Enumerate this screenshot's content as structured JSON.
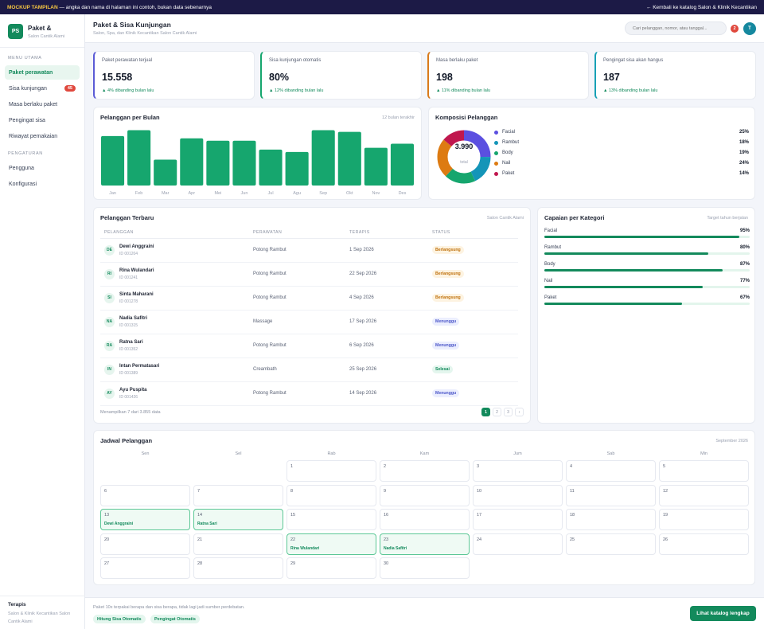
{
  "banner": {
    "mock_label": "MOCKUP TAMPILAN",
    "note": " — angka dan nama di halaman ini contoh, bukan data sebenarnya",
    "back_link": "← Kembali ke katalog Salon & Klinik Kecantikan"
  },
  "brand": {
    "logo": "PS",
    "name": "Paket &",
    "subtitle": "Salon Cantik Alami"
  },
  "sidebar": {
    "section_main": "MENU UTAMA",
    "items": [
      {
        "label": "Paket perawatan",
        "active": true
      },
      {
        "label": "Sisa kunjungan",
        "badge": "45"
      },
      {
        "label": "Masa berlaku paket"
      },
      {
        "label": "Pengingat sisa"
      },
      {
        "label": "Riwayat pemakaian"
      }
    ],
    "section_settings": "PENGATURAN",
    "settings_items": [
      {
        "label": "Pengguna"
      },
      {
        "label": "Konfigurasi"
      }
    ],
    "footer_title": "Terapis",
    "footer_sub": "Salon & Klinik Kecantikan Salon Cantik Alami"
  },
  "header": {
    "title": "Paket & Sisa Kunjungan",
    "subtitle": "Salon, Spa, dan Klinik Kecantikan Salon Cantik Alami",
    "search_placeholder": "Cari pelanggan, nomor, atau tanggal...",
    "notif_count": "2",
    "avatar": "T"
  },
  "kpis": [
    {
      "label": "Paket perawatan terjual",
      "value": "15.558",
      "delta": "▲ 4% dibanding bulan lalu",
      "accent": "#5b5bd6"
    },
    {
      "label": "Sisa kunjungan otomatis",
      "value": "80%",
      "delta": "▲ 12% dibanding bulan lalu",
      "accent": "#16a66e"
    },
    {
      "label": "Masa berlaku paket",
      "value": "198",
      "delta": "▲ 11% dibanding bulan lalu",
      "accent": "#d97a1a"
    },
    {
      "label": "Pengingat sisa akan hangus",
      "value": "187",
      "delta": "▲ 13% dibanding bulan lalu",
      "accent": "#16a0b5"
    }
  ],
  "monthly": {
    "title": "Pelanggan per Bulan",
    "meta": "12 bulan terakhir",
    "chart_data": {
      "type": "bar",
      "categories": [
        "Jan",
        "Feb",
        "Mar",
        "Apr",
        "Mei",
        "Jun",
        "Jul",
        "Agu",
        "Sep",
        "Okt",
        "Nov",
        "Des"
      ],
      "values": [
        84,
        94,
        44,
        80,
        76,
        76,
        61,
        57,
        94,
        91,
        64,
        71
      ],
      "ylim": [
        0,
        100
      ]
    }
  },
  "composition": {
    "title": "Komposisi Pelanggan",
    "total": "3.990",
    "total_label": "total",
    "chart_data": {
      "type": "pie",
      "categories": [
        "Facial",
        "Rambut",
        "Body",
        "Nail",
        "Paket"
      ],
      "values": [
        25,
        18,
        19,
        24,
        14
      ],
      "labels": [
        "25%",
        "18%",
        "19%",
        "24%",
        "14%"
      ],
      "colors": [
        "#5b4fe0",
        "#1495b8",
        "#16a66e",
        "#dd7b12",
        "#c0174e"
      ]
    }
  },
  "recent": {
    "title": "Pelanggan Terbaru",
    "meta": "Salon Cantik Alami",
    "columns": [
      "PELANGGAN",
      "PERAWATAN",
      "TERAPIS",
      "STATUS"
    ],
    "rows": [
      {
        "initials": "DE",
        "name": "Dewi Anggraini",
        "id": "ID 001204",
        "treatment": "Potong Rambut",
        "date": "1 Sep 2026",
        "status": "Berlangsung",
        "kind": "b"
      },
      {
        "initials": "RI",
        "name": "Rina Wulandari",
        "id": "ID 001241",
        "treatment": "Potong Rambut",
        "date": "22 Sep 2026",
        "status": "Berlangsung",
        "kind": "b"
      },
      {
        "initials": "SI",
        "name": "Sinta Maharani",
        "id": "ID 001278",
        "treatment": "Potong Rambut",
        "date": "4 Sep 2026",
        "status": "Berlangsung",
        "kind": "b"
      },
      {
        "initials": "NA",
        "name": "Nadia Safitri",
        "id": "ID 001315",
        "treatment": "Massage",
        "date": "17 Sep 2026",
        "status": "Menunggu",
        "kind": "m"
      },
      {
        "initials": "RA",
        "name": "Ratna Sari",
        "id": "ID 001352",
        "treatment": "Potong Rambut",
        "date": "6 Sep 2026",
        "status": "Menunggu",
        "kind": "m"
      },
      {
        "initials": "IN",
        "name": "Intan Permatasari",
        "id": "ID 001389",
        "treatment": "Creambath",
        "date": "25 Sep 2026",
        "status": "Selesai",
        "kind": "s"
      },
      {
        "initials": "AY",
        "name": "Ayu Puspita",
        "id": "ID 001426",
        "treatment": "Potong Rambut",
        "date": "14 Sep 2026",
        "status": "Menunggu",
        "kind": "m"
      }
    ],
    "pager_info": "Menampilkan 7 dari 3.855 data",
    "pages": [
      "1",
      "2",
      "3",
      "›"
    ]
  },
  "category": {
    "title": "Capaian per Kategori",
    "meta": "Target tahun berjalan",
    "chart_data": {
      "type": "bar",
      "categories": [
        "Facial",
        "Rambut",
        "Body",
        "Nail",
        "Paket"
      ],
      "values": [
        95,
        80,
        87,
        77,
        67
      ],
      "labels": [
        "95%",
        "80%",
        "87%",
        "77%",
        "67%"
      ],
      "ylim": [
        0,
        100
      ]
    }
  },
  "calendar": {
    "title": "Jadwal Pelanggan",
    "meta": "September 2026",
    "days": [
      "Sen",
      "Sel",
      "Rab",
      "Kam",
      "Jum",
      "Sab",
      "Min"
    ],
    "start_offset": 2,
    "dates": [
      "1",
      "2",
      "3",
      "4",
      "5",
      "6",
      "7",
      "8",
      "9",
      "10",
      "11",
      "12",
      "13",
      "14",
      "15",
      "16",
      "17",
      "18",
      "19",
      "20",
      "21",
      "22",
      "23",
      "24",
      "25",
      "26",
      "27",
      "28",
      "29",
      "30"
    ],
    "events": {
      "13": "Dewi Anggraini",
      "14": "Ratna Sari",
      "22": "Rina Wulandari",
      "23": "Nadia Safitri"
    }
  },
  "footer": {
    "text": "Paket 10x terpakai berapa dan sisa berapa, tidak lagi jadi sumber perdebatan.",
    "chips": [
      "Hitung Sisa Otomatis",
      "Pengingat Otomatis"
    ],
    "cta": "Lihat katalog lengkap"
  }
}
